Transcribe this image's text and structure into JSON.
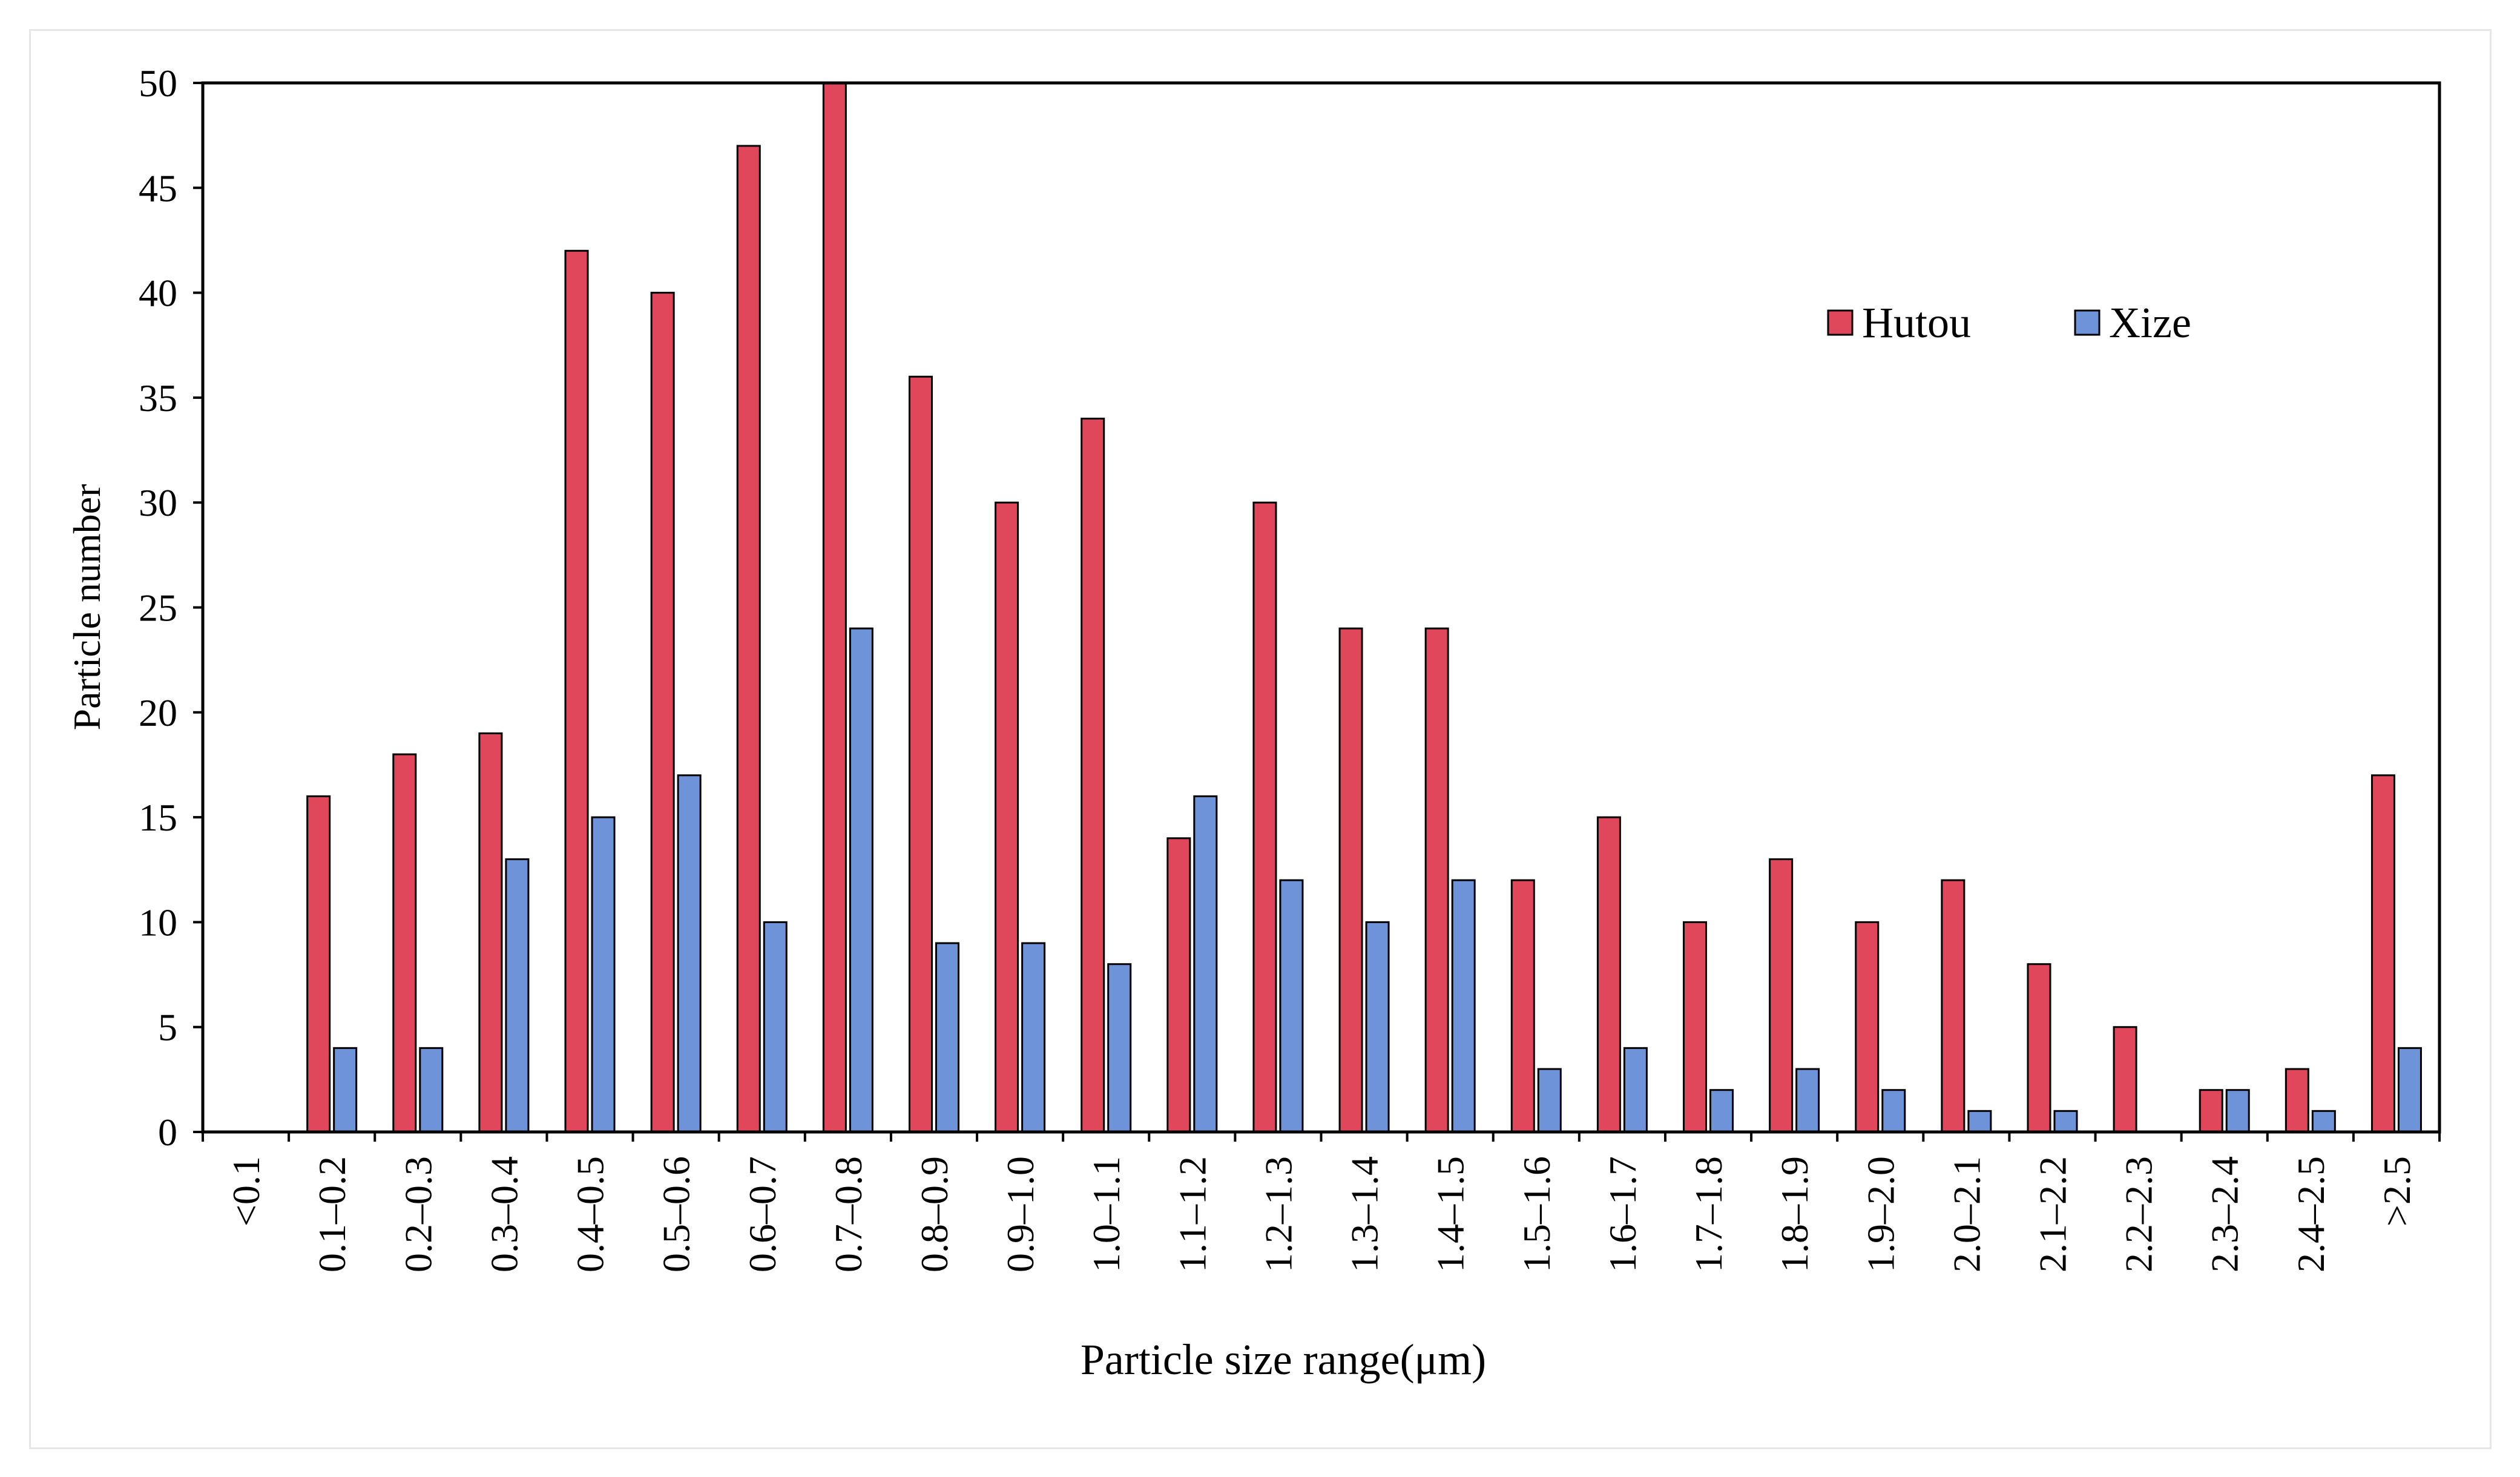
{
  "chart_data": {
    "type": "bar",
    "xlabel": "Particle size range(μm)",
    "ylabel": "Particle number",
    "ylim": [
      0,
      50
    ],
    "yticks": [
      0,
      5,
      10,
      15,
      20,
      25,
      30,
      35,
      40,
      45,
      50
    ],
    "grid": false,
    "legend_position": "top-right",
    "categories": [
      "<0.1",
      "0.1–0.2",
      "0.2–0.3",
      "0.3–0.4",
      "0.4–0.5",
      "0.5–0.6",
      "0.6–0.7",
      "0.7–0.8",
      "0.8–0.9",
      "0.9–1.0",
      "1.0–1.1",
      "1.1–1.2",
      "1.2–1.3",
      "1.3–1.4",
      "1.4–1.5",
      "1.5–1.6",
      "1.6–1.7",
      "1.7–1.8",
      "1.8–1.9",
      "1.9–2.0",
      "2.0–2.1",
      "2.1–2.2",
      "2.2–2.3",
      "2.3–2.4",
      "2.4–2.5",
      ">2.5"
    ],
    "series": [
      {
        "name": "Hutou",
        "color": "#e0475b",
        "values": [
          0,
          16,
          18,
          19,
          42,
          40,
          47,
          50,
          36,
          30,
          34,
          14,
          30,
          24,
          24,
          12,
          15,
          10,
          13,
          10,
          12,
          8,
          5,
          2,
          3,
          17
        ]
      },
      {
        "name": "Xize",
        "color": "#6f93d9",
        "values": [
          0,
          4,
          4,
          13,
          15,
          17,
          10,
          24,
          9,
          9,
          8,
          16,
          12,
          10,
          12,
          3,
          4,
          2,
          3,
          2,
          1,
          1,
          0,
          2,
          1,
          4
        ]
      }
    ]
  }
}
